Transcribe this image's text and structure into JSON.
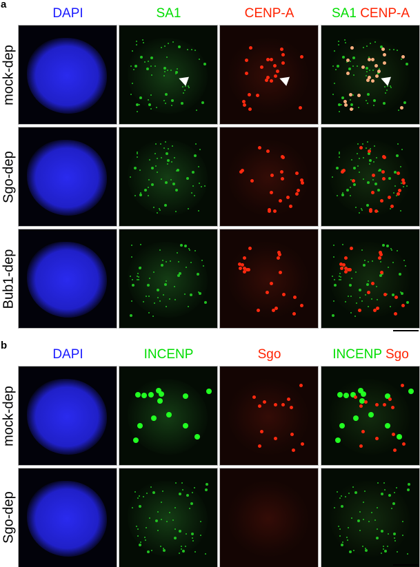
{
  "panel_a": {
    "label": "a",
    "columns": [
      {
        "text": "DAPI",
        "color": "#1a1aff"
      },
      {
        "text": "SA1",
        "color": "#00dd00"
      },
      {
        "text": "CENP-A",
        "color": "#ff2200"
      },
      {
        "merge_left": "SA1",
        "merge_left_color": "#00dd00",
        "merge_right": "CENP-A",
        "merge_right_color": "#ff2200"
      }
    ],
    "rows": [
      "mock-dep",
      "Sgo-dep",
      "Bub1-dep"
    ]
  },
  "panel_b": {
    "label": "b",
    "columns": [
      {
        "text": "DAPI",
        "color": "#1a1aff"
      },
      {
        "text": "INCENP",
        "color": "#00dd00"
      },
      {
        "text": "Sgo",
        "color": "#ff2200"
      },
      {
        "merge_left": "INCENP",
        "merge_left_color": "#00dd00",
        "merge_right": "Sgo",
        "merge_right_color": "#ff2200"
      }
    ],
    "rows": [
      "mock-dep",
      "Sgo-dep"
    ]
  },
  "icons": {
    "arrowhead": "white-arrowhead-icon",
    "scale_bar": "scale-bar"
  }
}
